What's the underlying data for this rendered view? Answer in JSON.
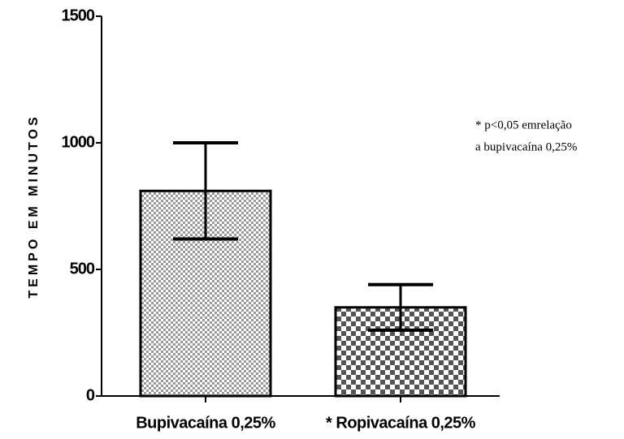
{
  "chart_data": {
    "type": "bar",
    "y_label": "TEMPO EM MINUTOS",
    "annotation": [
      "* p<0,05 emrelação",
      "a bupivacaína 0,25%"
    ],
    "categories": [
      "Bupivacaína 0,25%",
      "* Ropivacaína 0,25%"
    ],
    "values": [
      810,
      350
    ],
    "errors": [
      190,
      90
    ],
    "colors": [
      "#9a9a9a",
      "#555555"
    ],
    "ylim": [
      0,
      1500
    ],
    "yticks": [
      0,
      500,
      1000,
      1500
    ],
    "grid": false
  }
}
